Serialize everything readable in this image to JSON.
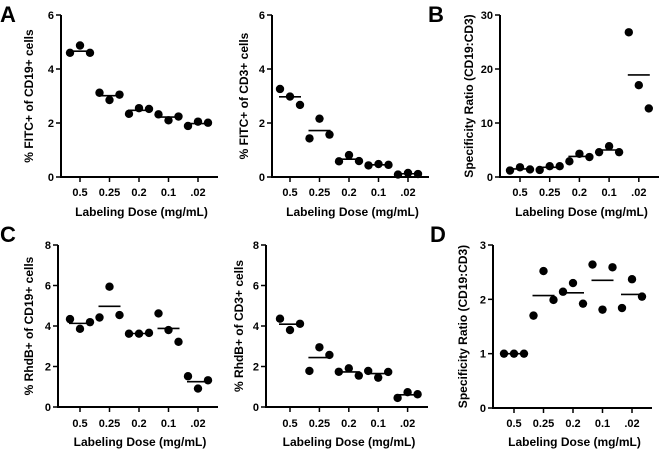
{
  "figure": {
    "panel_letters": [
      "A",
      "B",
      "C",
      "D"
    ]
  },
  "chart_data": [
    {
      "id": "A1",
      "type": "scatter",
      "panel_letter": "A",
      "title": "",
      "xlabel": "Labeling Dose (mg/mL)",
      "ylabel": "% FITC+ of CD19+ cells",
      "categories": [
        "0.5",
        "0.25",
        "0.2",
        "0.1",
        ".02"
      ],
      "ylim": [
        0,
        6
      ],
      "yticks": [
        0,
        2,
        4,
        6
      ],
      "series": [
        {
          "category": "0.5",
          "values": [
            4.6,
            4.87,
            4.6
          ],
          "mean": 4.66
        },
        {
          "category": "0.25",
          "values": [
            3.12,
            2.85,
            3.05
          ],
          "mean": 3.01
        },
        {
          "category": "0.2",
          "values": [
            2.34,
            2.55,
            2.52
          ],
          "mean": 2.47
        },
        {
          "category": "0.1",
          "values": [
            2.32,
            2.1,
            2.24
          ],
          "mean": 2.22
        },
        {
          "category": ".02",
          "values": [
            1.89,
            2.05,
            2.01
          ],
          "mean": 1.98
        }
      ],
      "grid": false,
      "legend": "none"
    },
    {
      "id": "A2",
      "type": "scatter",
      "panel_letter": "",
      "title": "",
      "xlabel": "Labeling Dose (mg/mL)",
      "ylabel": "% FITC+ of CD3+ cells",
      "categories": [
        "0.5",
        "0.25",
        "0.2",
        "0.1",
        ".02"
      ],
      "ylim": [
        0,
        6
      ],
      "yticks": [
        0,
        2,
        4,
        6
      ],
      "series": [
        {
          "category": "0.5",
          "values": [
            3.26,
            2.98,
            2.67
          ],
          "mean": 2.97
        },
        {
          "category": "0.25",
          "values": [
            1.43,
            2.16,
            1.57
          ],
          "mean": 1.72
        },
        {
          "category": "0.2",
          "values": [
            0.58,
            0.81,
            0.59
          ],
          "mean": 0.66
        },
        {
          "category": "0.1",
          "values": [
            0.43,
            0.48,
            0.45
          ],
          "mean": 0.45
        },
        {
          "category": ".02",
          "values": [
            0.09,
            0.15,
            0.11
          ],
          "mean": 0.12
        }
      ],
      "grid": false,
      "legend": "none"
    },
    {
      "id": "B",
      "type": "scatter",
      "panel_letter": "B",
      "title": "",
      "xlabel": "Labeling Dose (mg/mL)",
      "ylabel": "Specificity  Ratio (CD19:CD3)",
      "categories": [
        "0.5",
        "0.25",
        "0.2",
        "0.1",
        ".02"
      ],
      "ylim": [
        0,
        30
      ],
      "yticks": [
        0,
        10,
        20,
        30
      ],
      "series": [
        {
          "category": "0.5",
          "values": [
            1.2,
            1.8,
            1.4
          ],
          "mean": 1.5
        },
        {
          "category": "0.25",
          "values": [
            1.3,
            2.0,
            2.0
          ],
          "mean": 1.8
        },
        {
          "category": "0.2",
          "values": [
            2.9,
            4.3,
            3.7
          ],
          "mean": 3.8
        },
        {
          "category": "0.1",
          "values": [
            4.6,
            5.7,
            4.6
          ],
          "mean": 5.0
        },
        {
          "category": ".02",
          "values": [
            26.8,
            17.0,
            12.7
          ],
          "mean": 18.9
        }
      ],
      "grid": false,
      "legend": "none"
    },
    {
      "id": "C1",
      "type": "scatter",
      "panel_letter": "C",
      "title": "",
      "xlabel": "Labeling Dose (mg/mL)",
      "ylabel": "% RhdB+ of CD19+ cells",
      "categories": [
        "0.5",
        "0.25",
        "0.2",
        "0.1",
        ".02"
      ],
      "ylim": [
        0,
        8
      ],
      "yticks": [
        0,
        2,
        4,
        6,
        8
      ],
      "series": [
        {
          "category": "0.5",
          "values": [
            4.34,
            3.86,
            4.19
          ],
          "mean": 4.13
        },
        {
          "category": "0.25",
          "values": [
            4.42,
            5.94,
            4.54
          ],
          "mean": 4.97
        },
        {
          "category": "0.2",
          "values": [
            3.62,
            3.62,
            3.66
          ],
          "mean": 3.63
        },
        {
          "category": "0.1",
          "values": [
            4.62,
            3.8,
            3.22
          ],
          "mean": 3.88
        },
        {
          "category": ".02",
          "values": [
            1.52,
            0.91,
            1.32
          ],
          "mean": 1.25
        }
      ],
      "grid": false,
      "legend": "none"
    },
    {
      "id": "C2",
      "type": "scatter",
      "panel_letter": "",
      "title": "",
      "xlabel": "Labeling Dose (mg/mL)",
      "ylabel": "% RhdB+ of CD3+ cells",
      "categories": [
        "0.5",
        "0.25",
        "0.2",
        "0.1",
        ".02"
      ],
      "ylim": [
        0,
        8
      ],
      "yticks": [
        0,
        2,
        4,
        6,
        8
      ],
      "series": [
        {
          "category": "0.5",
          "values": [
            4.36,
            3.8,
            4.11
          ],
          "mean": 4.09
        },
        {
          "category": "0.25",
          "values": [
            1.78,
            2.95,
            2.57
          ],
          "mean": 2.44
        },
        {
          "category": "0.2",
          "values": [
            1.74,
            1.91,
            1.55
          ],
          "mean": 1.73
        },
        {
          "category": "0.1",
          "values": [
            1.78,
            1.45,
            1.73
          ],
          "mean": 1.65
        },
        {
          "category": ".02",
          "values": [
            0.45,
            0.73,
            0.63
          ],
          "mean": 0.6
        }
      ],
      "grid": false,
      "legend": "none"
    },
    {
      "id": "D",
      "type": "scatter",
      "panel_letter": "D",
      "title": "",
      "xlabel": "Labeling Dose (mg/mL)",
      "ylabel": "Specificity  Ratio (CD19:CD3)",
      "categories": [
        "0.5",
        "0.25",
        "0.2",
        "0.1",
        ".02"
      ],
      "ylim": [
        0,
        3
      ],
      "yticks": [
        0,
        1,
        2,
        3
      ],
      "series": [
        {
          "category": "0.5",
          "values": [
            1.0,
            1.0,
            1.0
          ],
          "mean": 1.0
        },
        {
          "category": "0.25",
          "values": [
            1.7,
            2.52,
            1.99
          ],
          "mean": 2.07
        },
        {
          "category": "0.2",
          "values": [
            2.14,
            2.3,
            1.92
          ],
          "mean": 2.12
        },
        {
          "category": "0.1",
          "values": [
            2.64,
            1.81,
            2.59
          ],
          "mean": 2.35
        },
        {
          "category": ".02",
          "values": [
            1.84,
            2.37,
            2.05
          ],
          "mean": 2.09
        }
      ],
      "grid": false,
      "legend": "none"
    }
  ]
}
